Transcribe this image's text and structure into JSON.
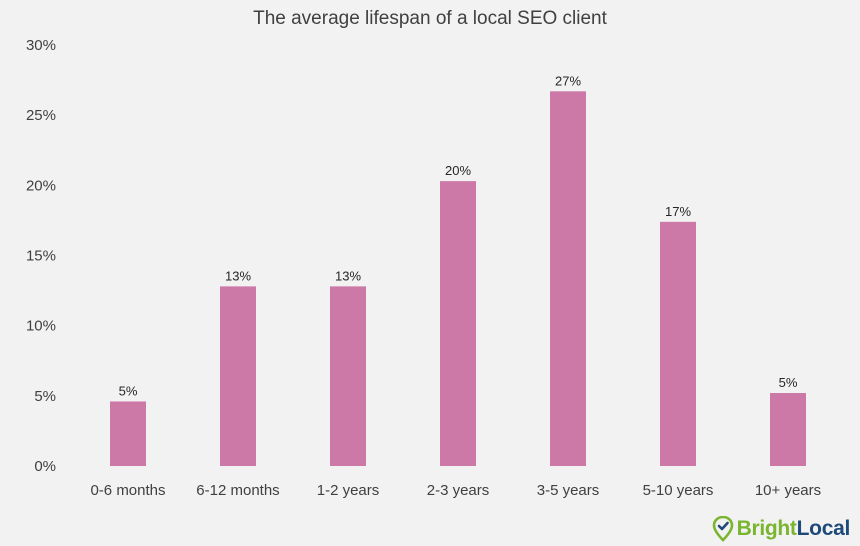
{
  "chart_data": {
    "type": "bar",
    "title": "The average lifespan of a local SEO client",
    "xlabel": "",
    "ylabel": "",
    "categories": [
      "0-6 months",
      "6-12 months",
      "1-2 years",
      "2-3 years",
      "3-5 years",
      "5-10 years",
      "10+ years"
    ],
    "values": [
      4.6,
      12.8,
      12.8,
      20.3,
      26.7,
      17.4,
      5.2
    ],
    "data_labels": [
      "5%",
      "13%",
      "13%",
      "20%",
      "27%",
      "17%",
      "5%"
    ],
    "ylim": [
      0,
      30
    ],
    "yticks": [
      0,
      5,
      10,
      15,
      20,
      25,
      30
    ],
    "ytick_labels": [
      "0%",
      "5%",
      "10%",
      "15%",
      "20%",
      "25%",
      "30%"
    ],
    "bar_color": "#cc79a7",
    "grid": false,
    "legend": "none"
  },
  "branding": {
    "logo_part1": "Bright",
    "logo_part2": "Local",
    "logo_color_1": "#7ab52f",
    "logo_color_2": "#1e4a7a"
  }
}
